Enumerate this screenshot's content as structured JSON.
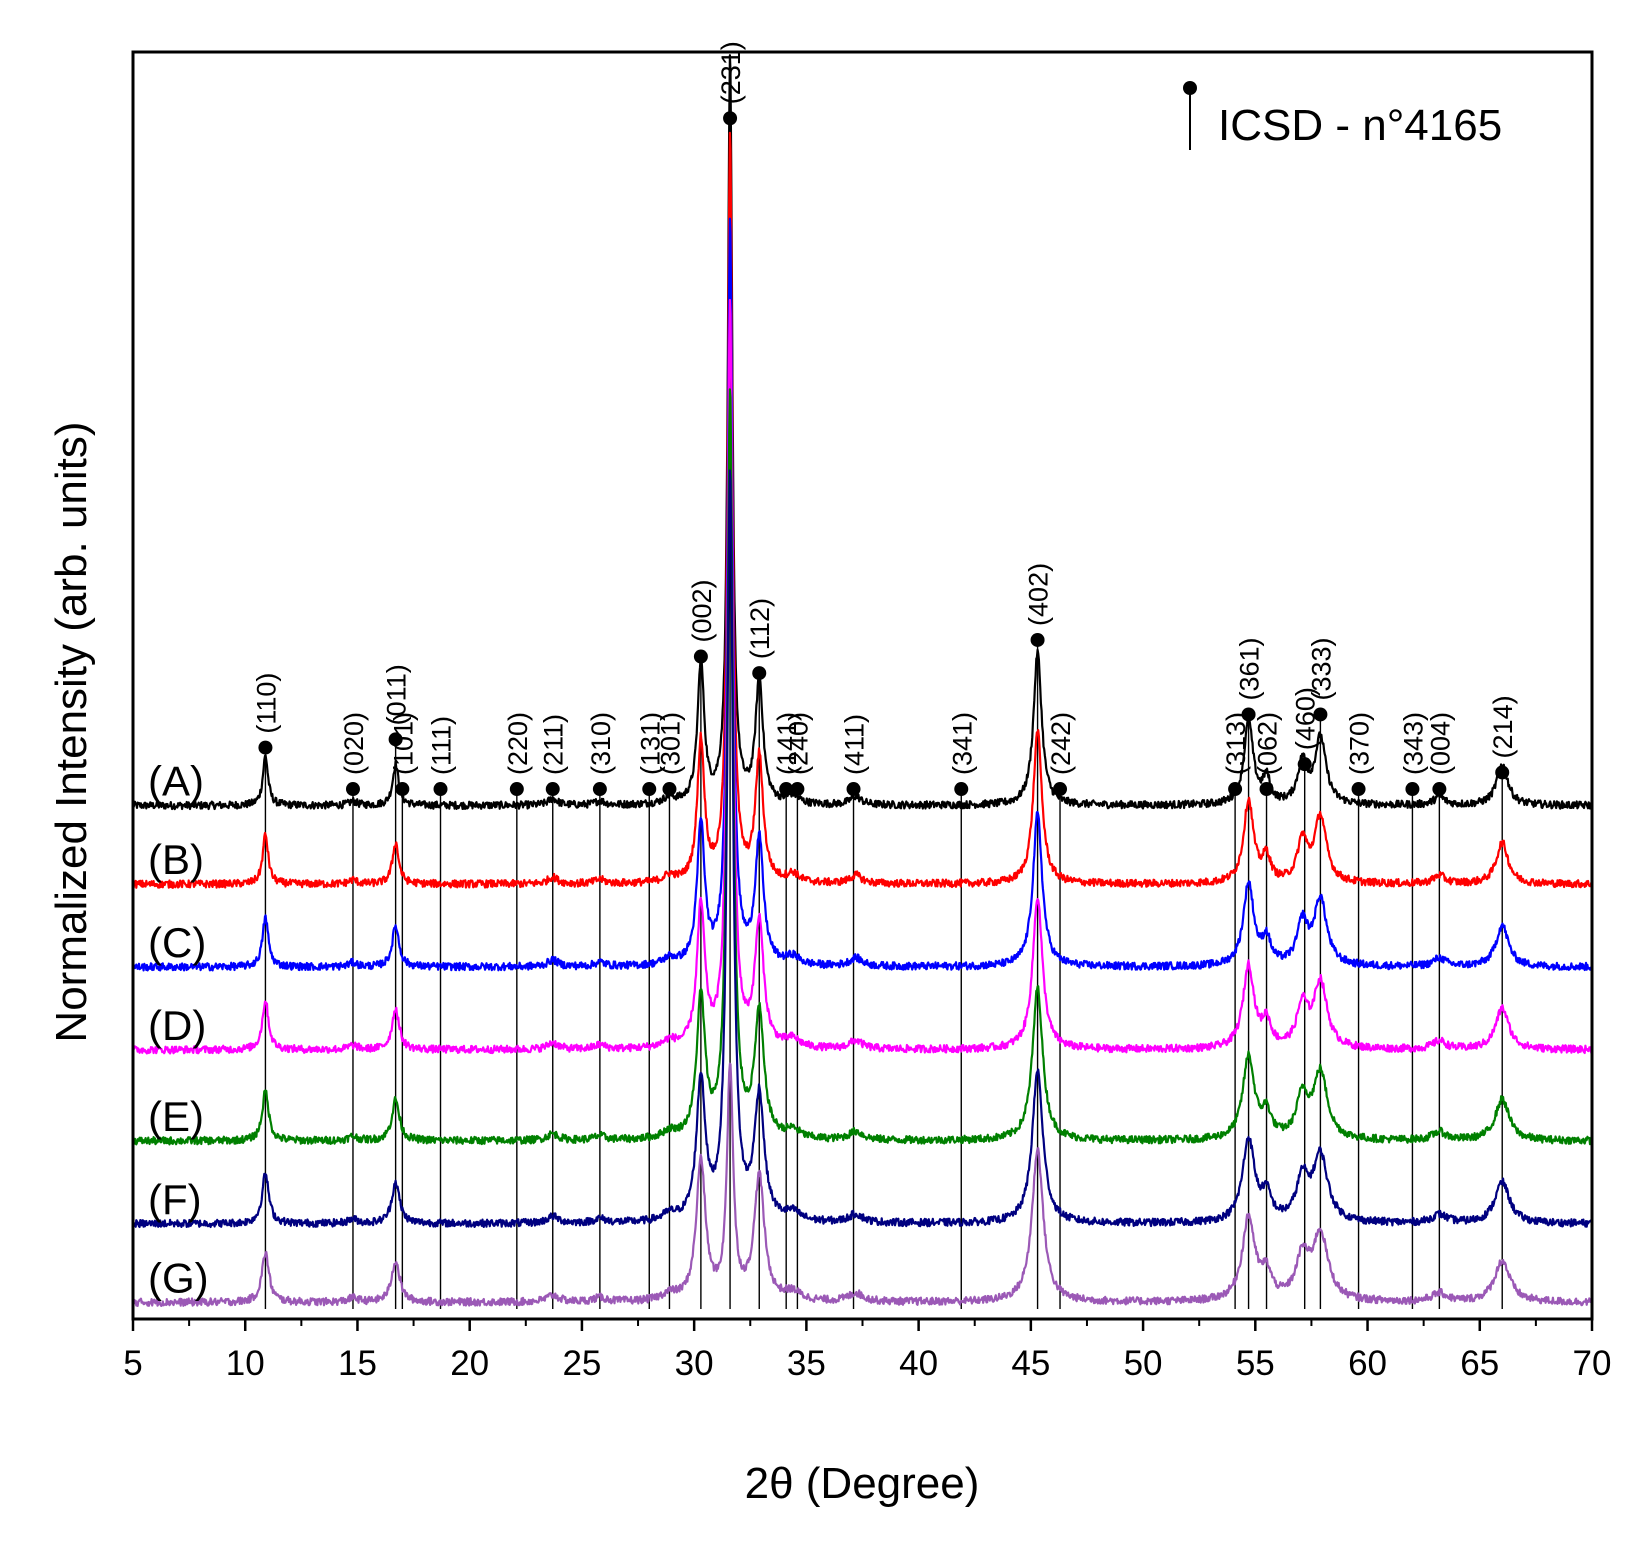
{
  "chart_data": {
    "type": "line",
    "title": "",
    "xlabel": "2θ (Degree)",
    "ylabel": "Normalized Intensity (arb. units)",
    "xlim": [
      5,
      70
    ],
    "x_ticks": [
      5,
      10,
      15,
      20,
      25,
      30,
      35,
      40,
      45,
      50,
      55,
      60,
      65,
      70
    ],
    "y_ticks_shown": false,
    "grid": false,
    "legend": {
      "position": "top-right",
      "label": "ICSD - n°4165",
      "marker": "black dot on vertical line"
    },
    "reference_pattern": {
      "name": "ICSD - n°4165",
      "peaks": [
        {
          "two_theta": 10.9,
          "hkl": "(110)"
        },
        {
          "two_theta": 14.8,
          "hkl": "(020)"
        },
        {
          "two_theta": 16.7,
          "hkl": "(011)"
        },
        {
          "two_theta": 17.0,
          "hkl": "(101)"
        },
        {
          "two_theta": 18.7,
          "hkl": "(111)"
        },
        {
          "two_theta": 22.1,
          "hkl": "(220)"
        },
        {
          "two_theta": 23.7,
          "hkl": "(211)"
        },
        {
          "two_theta": 25.8,
          "hkl": "(310)"
        },
        {
          "two_theta": 28.0,
          "hkl": "(131)"
        },
        {
          "two_theta": 28.9,
          "hkl": "(301)"
        },
        {
          "two_theta": 30.3,
          "hkl": "(002)"
        },
        {
          "two_theta": 31.6,
          "hkl": "(231)"
        },
        {
          "two_theta": 32.9,
          "hkl": "(112)"
        },
        {
          "two_theta": 34.1,
          "hkl": "(141)"
        },
        {
          "two_theta": 34.6,
          "hkl": "(240)"
        },
        {
          "two_theta": 37.1,
          "hkl": "(411)"
        },
        {
          "two_theta": 41.9,
          "hkl": "(341)"
        },
        {
          "two_theta": 45.3,
          "hkl": "(402)"
        },
        {
          "two_theta": 46.3,
          "hkl": "(242)"
        },
        {
          "two_theta": 54.1,
          "hkl": "(313)"
        },
        {
          "two_theta": 54.7,
          "hkl": "(361)"
        },
        {
          "two_theta": 55.5,
          "hkl": "(062)"
        },
        {
          "two_theta": 57.2,
          "hkl": "(460)"
        },
        {
          "two_theta": 57.9,
          "hkl": "(333)"
        },
        {
          "two_theta": 59.6,
          "hkl": "(370)"
        },
        {
          "two_theta": 62.0,
          "hkl": "(343)"
        },
        {
          "two_theta": 63.2,
          "hkl": "(004)"
        },
        {
          "two_theta": 66.0,
          "hkl": "(214)"
        }
      ]
    },
    "series": [
      {
        "name": "(A)",
        "color": "#000000",
        "baseline": 6.2
      },
      {
        "name": "(B)",
        "color": "#ff0000",
        "baseline": 5.25
      },
      {
        "name": "(C)",
        "color": "#0000ff",
        "baseline": 4.25
      },
      {
        "name": "(D)",
        "color": "#ff00ff",
        "baseline": 3.25
      },
      {
        "name": "(E)",
        "color": "#008000",
        "baseline": 2.15
      },
      {
        "name": "(F)",
        "color": "#000080",
        "baseline": 1.15
      },
      {
        "name": "(G)",
        "color": "#9b59b6",
        "baseline": 0.2
      }
    ],
    "observed_peaks": [
      {
        "two_theta": 10.9,
        "height": 0.6,
        "width": 0.14
      },
      {
        "two_theta": 14.8,
        "height": 0.05,
        "width": 0.2
      },
      {
        "two_theta": 16.7,
        "height": 0.5,
        "width": 0.16
      },
      {
        "two_theta": 23.7,
        "height": 0.08,
        "width": 0.25
      },
      {
        "two_theta": 25.8,
        "height": 0.05,
        "width": 0.25
      },
      {
        "two_theta": 28.9,
        "height": 0.08,
        "width": 0.3
      },
      {
        "two_theta": 30.3,
        "height": 1.7,
        "width": 0.18
      },
      {
        "two_theta": 31.6,
        "height": 9.0,
        "width": 0.12
      },
      {
        "two_theta": 32.9,
        "height": 1.5,
        "width": 0.2
      },
      {
        "two_theta": 34.4,
        "height": 0.1,
        "width": 0.3
      },
      {
        "two_theta": 37.2,
        "height": 0.1,
        "width": 0.3
      },
      {
        "two_theta": 45.3,
        "height": 1.85,
        "width": 0.22
      },
      {
        "two_theta": 54.7,
        "height": 1.0,
        "width": 0.25
      },
      {
        "two_theta": 55.5,
        "height": 0.3,
        "width": 0.2
      },
      {
        "two_theta": 57.1,
        "height": 0.5,
        "width": 0.25
      },
      {
        "two_theta": 57.9,
        "height": 0.8,
        "width": 0.3
      },
      {
        "two_theta": 63.2,
        "height": 0.1,
        "width": 0.3
      },
      {
        "two_theta": 66.0,
        "height": 0.5,
        "width": 0.3
      }
    ],
    "ylim": [
      0,
      15.3
    ]
  }
}
